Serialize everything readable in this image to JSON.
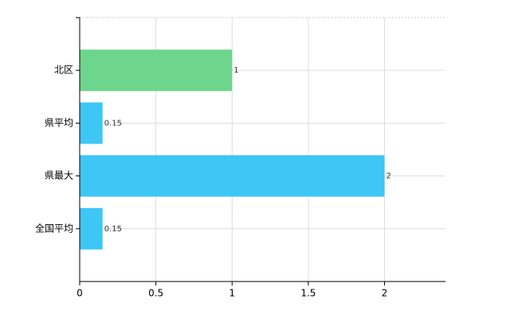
{
  "chart_data": {
    "type": "barh",
    "categories": [
      "北区",
      "県平均",
      "県最大",
      "全国平均"
    ],
    "values": [
      1,
      0.15,
      2,
      0.15
    ],
    "colors": [
      "#6dd58c",
      "#3ec6f5",
      "#3ec6f5",
      "#3ec6f5"
    ],
    "xlim": [
      0,
      2.4
    ],
    "xticks": [
      0,
      0.5,
      1,
      1.5,
      2
    ],
    "grid": true
  }
}
